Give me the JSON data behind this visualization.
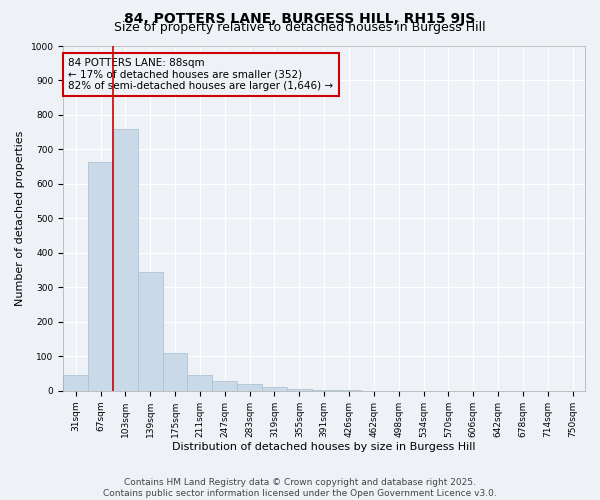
{
  "title": "84, POTTERS LANE, BURGESS HILL, RH15 9JS",
  "subtitle": "Size of property relative to detached houses in Burgess Hill",
  "xlabel": "Distribution of detached houses by size in Burgess Hill",
  "ylabel": "Number of detached properties",
  "bar_labels": [
    "31sqm",
    "67sqm",
    "103sqm",
    "139sqm",
    "175sqm",
    "211sqm",
    "247sqm",
    "283sqm",
    "319sqm",
    "355sqm",
    "391sqm",
    "426sqm",
    "462sqm",
    "498sqm",
    "534sqm",
    "570sqm",
    "606sqm",
    "642sqm",
    "678sqm",
    "714sqm",
    "750sqm"
  ],
  "bar_values": [
    45,
    665,
    760,
    345,
    110,
    45,
    30,
    20,
    10,
    5,
    3,
    2,
    1,
    1,
    0,
    0,
    0,
    0,
    0,
    0,
    0
  ],
  "bar_color": "#c9d9e8",
  "bar_edgecolor": "#a8bece",
  "vline_color": "#cc0000",
  "vline_x_index": 1.5,
  "annotation_box_text": "84 POTTERS LANE: 88sqm\n← 17% of detached houses are smaller (352)\n82% of semi-detached houses are larger (1,646) →",
  "ylim": [
    0,
    1000
  ],
  "yticks": [
    0,
    100,
    200,
    300,
    400,
    500,
    600,
    700,
    800,
    900,
    1000
  ],
  "background_color": "#eef2f7",
  "grid_color": "#ffffff",
  "footer_line1": "Contains HM Land Registry data © Crown copyright and database right 2025.",
  "footer_line2": "Contains public sector information licensed under the Open Government Licence v3.0.",
  "title_fontsize": 10,
  "subtitle_fontsize": 9,
  "xlabel_fontsize": 8,
  "ylabel_fontsize": 8,
  "tick_fontsize": 6.5,
  "annotation_fontsize": 7.5,
  "footer_fontsize": 6.5
}
